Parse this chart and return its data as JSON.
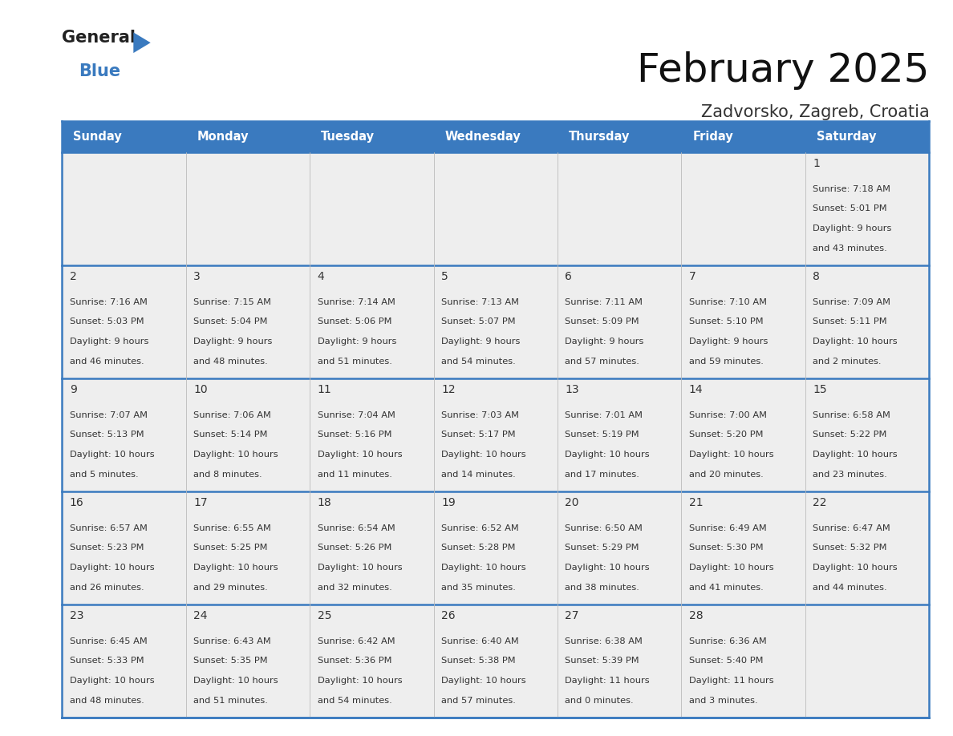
{
  "title": "February 2025",
  "subtitle": "Zadvorsko, Zagreb, Croatia",
  "header_color": "#3a7abf",
  "header_text_color": "#ffffff",
  "cell_bg_color": "#eeeeee",
  "border_color": "#3a7abf",
  "text_color": "#333333",
  "day_names": [
    "Sunday",
    "Monday",
    "Tuesday",
    "Wednesday",
    "Thursday",
    "Friday",
    "Saturday"
  ],
  "days": [
    {
      "day": 1,
      "col": 6,
      "row": 0,
      "sunrise": "7:18 AM",
      "sunset": "5:01 PM",
      "daylight": "9 hours and 43 minutes."
    },
    {
      "day": 2,
      "col": 0,
      "row": 1,
      "sunrise": "7:16 AM",
      "sunset": "5:03 PM",
      "daylight": "9 hours and 46 minutes."
    },
    {
      "day": 3,
      "col": 1,
      "row": 1,
      "sunrise": "7:15 AM",
      "sunset": "5:04 PM",
      "daylight": "9 hours and 48 minutes."
    },
    {
      "day": 4,
      "col": 2,
      "row": 1,
      "sunrise": "7:14 AM",
      "sunset": "5:06 PM",
      "daylight": "9 hours and 51 minutes."
    },
    {
      "day": 5,
      "col": 3,
      "row": 1,
      "sunrise": "7:13 AM",
      "sunset": "5:07 PM",
      "daylight": "9 hours and 54 minutes."
    },
    {
      "day": 6,
      "col": 4,
      "row": 1,
      "sunrise": "7:11 AM",
      "sunset": "5:09 PM",
      "daylight": "9 hours and 57 minutes."
    },
    {
      "day": 7,
      "col": 5,
      "row": 1,
      "sunrise": "7:10 AM",
      "sunset": "5:10 PM",
      "daylight": "9 hours and 59 minutes."
    },
    {
      "day": 8,
      "col": 6,
      "row": 1,
      "sunrise": "7:09 AM",
      "sunset": "5:11 PM",
      "daylight": "10 hours and 2 minutes."
    },
    {
      "day": 9,
      "col": 0,
      "row": 2,
      "sunrise": "7:07 AM",
      "sunset": "5:13 PM",
      "daylight": "10 hours and 5 minutes."
    },
    {
      "day": 10,
      "col": 1,
      "row": 2,
      "sunrise": "7:06 AM",
      "sunset": "5:14 PM",
      "daylight": "10 hours and 8 minutes."
    },
    {
      "day": 11,
      "col": 2,
      "row": 2,
      "sunrise": "7:04 AM",
      "sunset": "5:16 PM",
      "daylight": "10 hours and 11 minutes."
    },
    {
      "day": 12,
      "col": 3,
      "row": 2,
      "sunrise": "7:03 AM",
      "sunset": "5:17 PM",
      "daylight": "10 hours and 14 minutes."
    },
    {
      "day": 13,
      "col": 4,
      "row": 2,
      "sunrise": "7:01 AM",
      "sunset": "5:19 PM",
      "daylight": "10 hours and 17 minutes."
    },
    {
      "day": 14,
      "col": 5,
      "row": 2,
      "sunrise": "7:00 AM",
      "sunset": "5:20 PM",
      "daylight": "10 hours and 20 minutes."
    },
    {
      "day": 15,
      "col": 6,
      "row": 2,
      "sunrise": "6:58 AM",
      "sunset": "5:22 PM",
      "daylight": "10 hours and 23 minutes."
    },
    {
      "day": 16,
      "col": 0,
      "row": 3,
      "sunrise": "6:57 AM",
      "sunset": "5:23 PM",
      "daylight": "10 hours and 26 minutes."
    },
    {
      "day": 17,
      "col": 1,
      "row": 3,
      "sunrise": "6:55 AM",
      "sunset": "5:25 PM",
      "daylight": "10 hours and 29 minutes."
    },
    {
      "day": 18,
      "col": 2,
      "row": 3,
      "sunrise": "6:54 AM",
      "sunset": "5:26 PM",
      "daylight": "10 hours and 32 minutes."
    },
    {
      "day": 19,
      "col": 3,
      "row": 3,
      "sunrise": "6:52 AM",
      "sunset": "5:28 PM",
      "daylight": "10 hours and 35 minutes."
    },
    {
      "day": 20,
      "col": 4,
      "row": 3,
      "sunrise": "6:50 AM",
      "sunset": "5:29 PM",
      "daylight": "10 hours and 38 minutes."
    },
    {
      "day": 21,
      "col": 5,
      "row": 3,
      "sunrise": "6:49 AM",
      "sunset": "5:30 PM",
      "daylight": "10 hours and 41 minutes."
    },
    {
      "day": 22,
      "col": 6,
      "row": 3,
      "sunrise": "6:47 AM",
      "sunset": "5:32 PM",
      "daylight": "10 hours and 44 minutes."
    },
    {
      "day": 23,
      "col": 0,
      "row": 4,
      "sunrise": "6:45 AM",
      "sunset": "5:33 PM",
      "daylight": "10 hours and 48 minutes."
    },
    {
      "day": 24,
      "col": 1,
      "row": 4,
      "sunrise": "6:43 AM",
      "sunset": "5:35 PM",
      "daylight": "10 hours and 51 minutes."
    },
    {
      "day": 25,
      "col": 2,
      "row": 4,
      "sunrise": "6:42 AM",
      "sunset": "5:36 PM",
      "daylight": "10 hours and 54 minutes."
    },
    {
      "day": 26,
      "col": 3,
      "row": 4,
      "sunrise": "6:40 AM",
      "sunset": "5:38 PM",
      "daylight": "10 hours and 57 minutes."
    },
    {
      "day": 27,
      "col": 4,
      "row": 4,
      "sunrise": "6:38 AM",
      "sunset": "5:39 PM",
      "daylight": "11 hours and 0 minutes."
    },
    {
      "day": 28,
      "col": 5,
      "row": 4,
      "sunrise": "6:36 AM",
      "sunset": "5:40 PM",
      "daylight": "11 hours and 3 minutes."
    }
  ],
  "num_rows": 5,
  "num_cols": 7,
  "logo_general_color": "#222222",
  "logo_blue_color": "#3a7abf",
  "logo_triangle_color": "#3a7abf"
}
